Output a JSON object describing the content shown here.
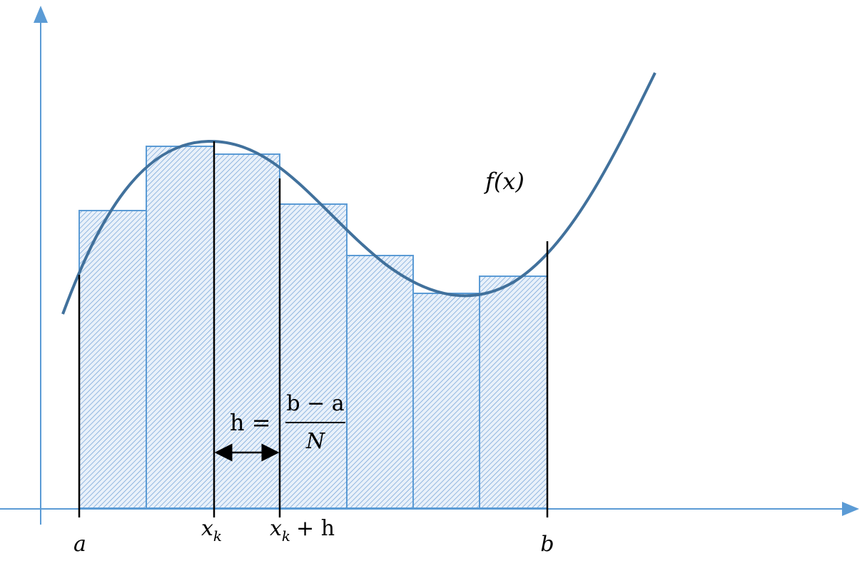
{
  "labels": {
    "a": "a",
    "b": "b",
    "x_k": {
      "base": "x",
      "sub": "k"
    },
    "x_k_plus_h": {
      "base": "x",
      "sub": "k",
      "rest": "+ h"
    },
    "function": "f(x)",
    "step": {
      "lhs": "h =",
      "numerator": "b − a",
      "denominator": "N"
    }
  }
}
